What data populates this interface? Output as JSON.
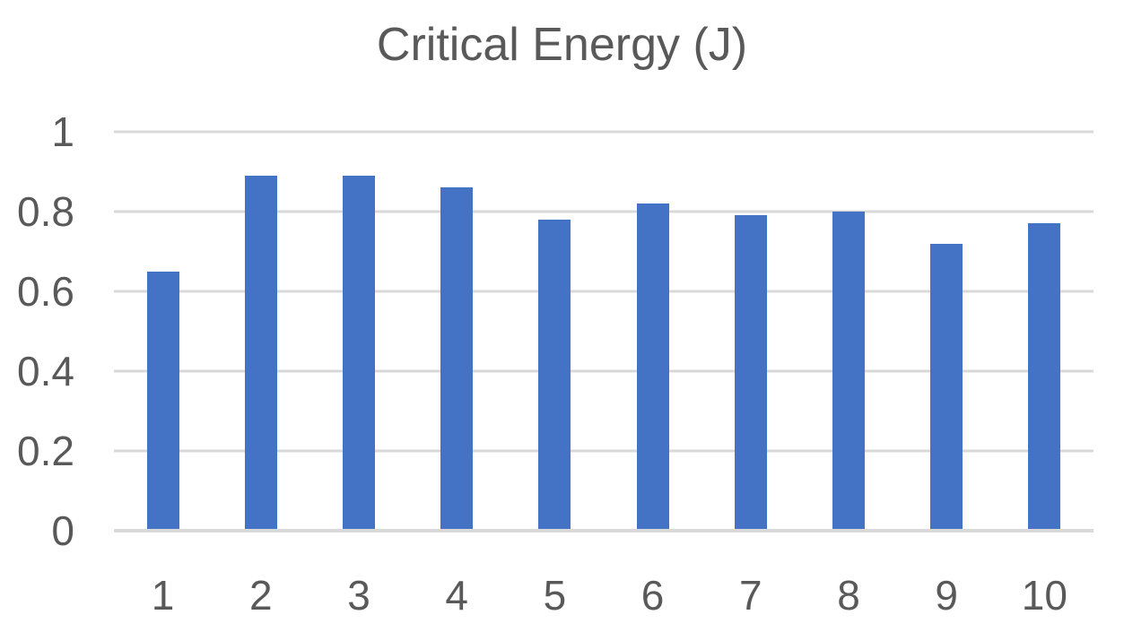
{
  "page": {
    "background": "#ffffff"
  },
  "chart_data": {
    "type": "bar",
    "title": "Critical Energy (J)",
    "categories": [
      "1",
      "2",
      "3",
      "4",
      "5",
      "6",
      "7",
      "8",
      "9",
      "10"
    ],
    "values": [
      0.65,
      0.89,
      0.89,
      0.86,
      0.78,
      0.82,
      0.79,
      0.8,
      0.72,
      0.77
    ],
    "xlabel": "",
    "ylabel": "",
    "ylim": [
      0,
      1
    ],
    "yticks": [
      0,
      0.2,
      0.4,
      0.6,
      0.8,
      1
    ],
    "ytick_labels": [
      "0",
      "0.2",
      "0.4",
      "0.6",
      "0.8",
      "1"
    ],
    "grid": "horizontal",
    "legend": "none",
    "colors": {
      "bar": "#4472C4",
      "gridline": "#D9D9D9",
      "axis_line": "#D9D9D9",
      "text": "#595959"
    }
  }
}
